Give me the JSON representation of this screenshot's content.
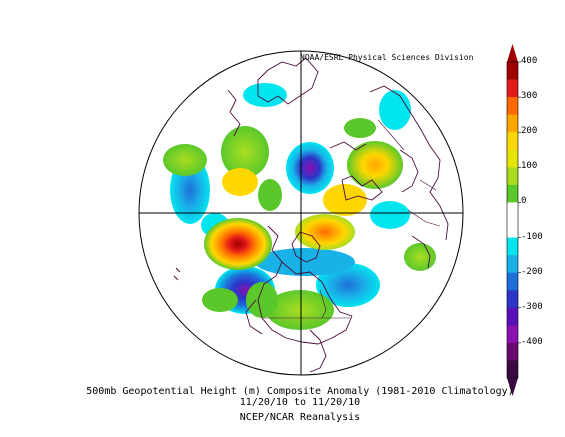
{
  "credit": "NOAA/ESRL Physical Sciences Division",
  "caption": {
    "line1": "500mb Geopotential Height (m) Composite Anomaly (1981-2010 Climatology)",
    "line2": "11/20/10  to 11/20/10",
    "line3": "NCEP/NCAR Reanalysis"
  },
  "colorbar": {
    "labels": [
      "400",
      "300",
      "200",
      "100",
      "0",
      "-100",
      "-200",
      "-300",
      "-400"
    ],
    "colors": [
      "#a00000",
      "#e31a1c",
      "#ff6a00",
      "#ffa500",
      "#ffd700",
      "#e5e500",
      "#aadd22",
      "#5ac82a",
      "#ffffff",
      "#ffffff",
      "#00e5ee",
      "#19b2e8",
      "#1e6fd9",
      "#2c35c8",
      "#5a10b8",
      "#8a10b0",
      "#6a0a70",
      "#3a0a40"
    ]
  }
}
